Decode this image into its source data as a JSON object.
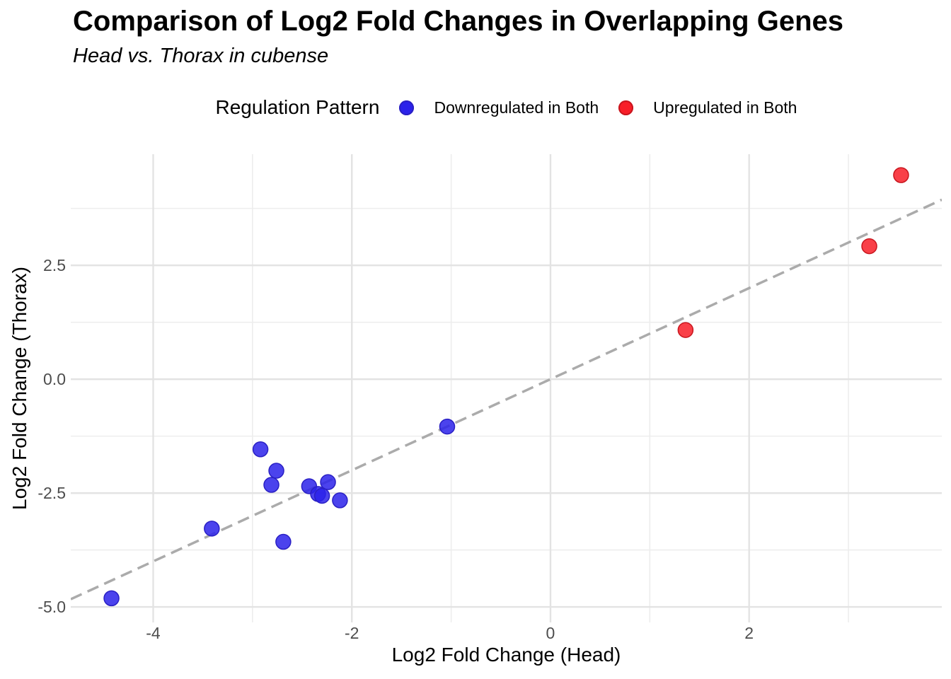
{
  "header": {
    "title": "Comparison of Log2 Fold Changes in Overlapping Genes",
    "subtitle": "Head vs. Thorax in cubense"
  },
  "legend": {
    "title": "Regulation Pattern",
    "items": [
      {
        "label": "Downregulated in Both",
        "fill": "#2B22EA",
        "stroke": "#2A20C4"
      },
      {
        "label": "Upregulated in Both",
        "fill": "#F81E28",
        "stroke": "#C8161E"
      }
    ]
  },
  "colors": {
    "grid_major": "#E3E3E3",
    "grid_minor": "#EDEDED",
    "tick_label": "#4D4D4D",
    "reference_line": "#ABABAB"
  },
  "chart_data": {
    "type": "scatter",
    "title": "Comparison of Log2 Fold Changes in Overlapping Genes",
    "subtitle": "Head vs. Thorax in cubense",
    "xlabel": "Log2 Fold Change (Head)",
    "ylabel": "Log2 Fold Change (Thorax)",
    "xlim": [
      -4.83,
      3.94
    ],
    "ylim": [
      -5.34,
      4.94
    ],
    "grid": true,
    "legend_position": "top",
    "x_ticks": {
      "values": [
        -4,
        -2,
        0,
        2
      ],
      "labels": [
        "-4",
        "-2",
        "0",
        "2"
      ],
      "minor": [
        -3,
        -1,
        1,
        3
      ]
    },
    "y_ticks": {
      "values": [
        2.5,
        0,
        -2.5,
        -5
      ],
      "labels": [
        "2.5",
        "0.0",
        "-2.5",
        "-5.0"
      ],
      "minor": [
        3.75,
        1.25,
        -1.25,
        -3.75
      ]
    },
    "reference_line": {
      "type": "identity y = x",
      "style": "dashed",
      "color": "#ABABAB",
      "width": 3.5,
      "dash": "17 9"
    },
    "point_radius": 10.5,
    "series": [
      {
        "name": "Downregulated in Both",
        "fill": "#2B22EA",
        "stroke": "#2A20C4",
        "opacity": 0.85,
        "points": [
          [
            -4.42,
            -4.81
          ],
          [
            -3.41,
            -3.28
          ],
          [
            -2.92,
            -1.54
          ],
          [
            -2.81,
            -2.32
          ],
          [
            -2.76,
            -2.01
          ],
          [
            -2.69,
            -3.57
          ],
          [
            -2.43,
            -2.35
          ],
          [
            -2.34,
            -2.52
          ],
          [
            -2.3,
            -2.56
          ],
          [
            -2.24,
            -2.26
          ],
          [
            -2.12,
            -2.66
          ],
          [
            -1.04,
            -1.04
          ]
        ]
      },
      {
        "name": "Upregulated in Both",
        "fill": "#F81E28",
        "stroke": "#C8161E",
        "opacity": 0.85,
        "points": [
          [
            1.36,
            1.08
          ],
          [
            3.21,
            2.92
          ],
          [
            3.53,
            4.48
          ]
        ]
      }
    ]
  }
}
